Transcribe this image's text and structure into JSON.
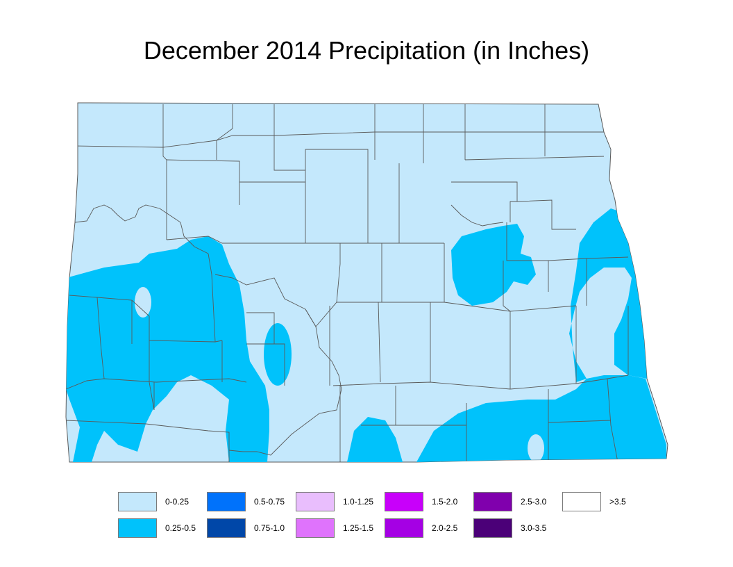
{
  "title": "December 2014 Precipitation (in Inches)",
  "colors": {
    "state_fill": "#c4e8fc",
    "wet_fill": "#00c2fb",
    "county_line": "#5a5a5a"
  },
  "legend": [
    {
      "label": "0-0.25",
      "color": "#c4e8fc"
    },
    {
      "label": "0.25-0.5",
      "color": "#00c2fb"
    },
    {
      "label": "0.5-0.75",
      "color": "#0072fb"
    },
    {
      "label": "0.75-1.0",
      "color": "#0047a8"
    },
    {
      "label": "1.0-1.25",
      "color": "#e9befd"
    },
    {
      "label": "1.25-1.5",
      "color": "#df73fc"
    },
    {
      "label": "1.5-2.0",
      "color": "#c800fa"
    },
    {
      "label": "2.0-2.5",
      "color": "#a500e4"
    },
    {
      "label": "2.5-3.0",
      "color": "#8000ad"
    },
    {
      "label": "3.0-3.5",
      "color": "#4b0078"
    },
    {
      "label": ">3.5",
      "color": "#ffffff"
    }
  ]
}
